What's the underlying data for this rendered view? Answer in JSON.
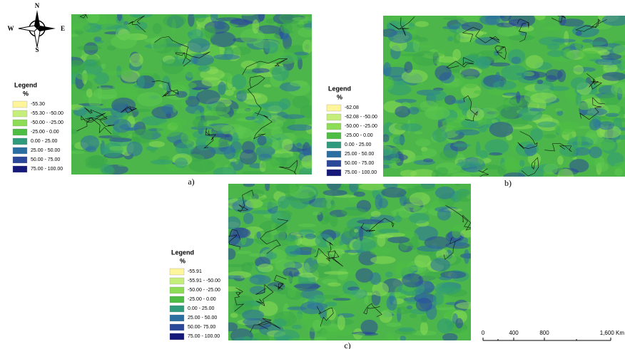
{
  "compass": {
    "n": "N",
    "s": "S",
    "w": "W",
    "e": "E"
  },
  "maps": [
    {
      "caption": "a)",
      "legend": {
        "title": "Legend",
        "unit": "%",
        "items": [
          {
            "label": "-55.30",
            "color": "#fff59a"
          },
          {
            "label": "-55.30 - -50.00",
            "color": "#c6ee7a"
          },
          {
            "label": "-50.00 - -25.00",
            "color": "#8ddc55"
          },
          {
            "label": "-25.00 - 0.00",
            "color": "#4dbd43"
          },
          {
            "label": "0.00 - 25.00",
            "color": "#2f9a7c"
          },
          {
            "label": "25.00 - 50.00",
            "color": "#2b6fa2"
          },
          {
            "label": "50.00 - 75.00",
            "color": "#2a479a"
          },
          {
            "label": "75.00 - 100.00",
            "color": "#15197a"
          }
        ]
      }
    },
    {
      "caption": "b)",
      "legend": {
        "title": "Legend",
        "unit": "%",
        "items": [
          {
            "label": "-62.08",
            "color": "#fff59a"
          },
          {
            "label": "-62.08 - -50.00",
            "color": "#c6ee7a"
          },
          {
            "label": "-50.00 - -25.00",
            "color": "#8ddc55"
          },
          {
            "label": "-25.00 - 0.00",
            "color": "#4dbd43"
          },
          {
            "label": "0.00 - 25.00",
            "color": "#2f9a7c"
          },
          {
            "label": "25.00 - 50.00",
            "color": "#2b6fa2"
          },
          {
            "label": "50.00 - 75.00",
            "color": "#2a479a"
          },
          {
            "label": "75.00 - 100.00",
            "color": "#15197a"
          }
        ]
      }
    },
    {
      "caption": "c)",
      "legend": {
        "title": "Legend",
        "unit": "%",
        "items": [
          {
            "label": "-55.91",
            "color": "#fff59a"
          },
          {
            "label": "-55.91 - -50.00",
            "color": "#c6ee7a"
          },
          {
            "label": "-50.00 - -25.00",
            "color": "#8ddc55"
          },
          {
            "label": "-25.00 - 0.00",
            "color": "#4dbd43"
          },
          {
            "label": "0.00 - 25.00",
            "color": "#2f9a7c"
          },
          {
            "label": "25.00 - 50.00",
            "color": "#2b6fa2"
          },
          {
            "label": "50.00- 75.00",
            "color": "#2a479a"
          },
          {
            "label": "75.00 - 100.00",
            "color": "#15197a"
          }
        ]
      }
    }
  ],
  "scale_bar": {
    "labels": [
      "0",
      "400",
      "800",
      "1,600 Km"
    ]
  }
}
